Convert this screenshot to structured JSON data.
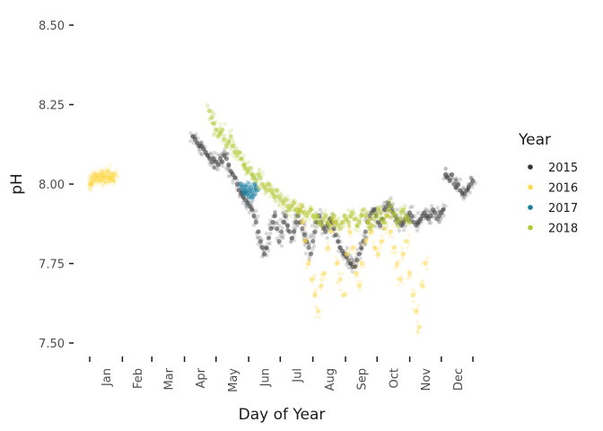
{
  "chart_data": {
    "type": "scatter",
    "xlabel": "Day of Year",
    "ylabel": "pH",
    "xlim": [
      1,
      365
    ],
    "ylim": [
      7.5,
      8.5
    ],
    "y_ticks": [
      7.5,
      7.75,
      8.0,
      8.25,
      8.5
    ],
    "y_tick_labels": [
      "7.50",
      "7.75",
      "8.00",
      "8.25",
      "8.50"
    ],
    "x_tick_labels": [
      "Jan",
      "Feb",
      "Mar",
      "Apr",
      "May",
      "Jun",
      "Jul",
      "Aug",
      "Sep",
      "Oct",
      "Nov",
      "Dec"
    ],
    "grid": false,
    "legend": {
      "title": "Year",
      "position": "right"
    },
    "series": [
      {
        "name": "2015",
        "color": "#333333",
        "x": [
          99,
          101,
          103,
          105,
          107,
          109,
          111,
          113,
          115,
          117,
          119,
          121,
          123,
          125,
          127,
          129,
          131,
          133,
          135,
          137,
          139,
          141,
          143,
          145,
          147,
          149,
          151,
          153,
          155,
          157,
          159,
          161,
          163,
          165,
          167,
          169,
          171,
          173,
          175,
          177,
          179,
          181,
          183,
          185,
          187,
          189,
          191,
          193,
          195,
          197,
          199,
          201,
          203,
          205,
          207,
          209,
          211,
          213,
          215,
          217,
          219,
          221,
          223,
          225,
          227,
          229,
          231,
          233,
          235,
          237,
          239,
          241,
          243,
          245,
          247,
          249,
          251,
          253,
          255,
          257,
          259,
          261,
          263,
          265,
          267,
          269,
          271,
          273,
          275,
          277,
          279,
          281,
          283,
          285,
          287,
          289,
          291,
          293,
          295,
          297,
          299,
          301,
          303,
          305,
          307,
          309,
          311,
          313,
          315,
          317,
          319,
          321,
          323,
          325,
          327,
          329,
          331,
          333,
          335,
          337,
          339,
          341,
          343,
          345,
          347,
          349,
          351,
          353,
          355,
          357,
          359,
          361,
          363,
          365
        ],
        "y": [
          8.15,
          8.14,
          8.13,
          8.12,
          8.12,
          8.11,
          8.1,
          8.09,
          8.08,
          8.07,
          8.08,
          8.07,
          8.06,
          8.08,
          8.07,
          8.09,
          8.08,
          8.06,
          8.04,
          8.03,
          8.02,
          8.0,
          7.98,
          7.97,
          7.96,
          7.95,
          7.94,
          7.93,
          7.92,
          7.9,
          7.88,
          7.85,
          7.82,
          7.8,
          7.78,
          7.8,
          7.83,
          7.86,
          7.88,
          7.9,
          7.86,
          7.82,
          7.85,
          7.88,
          7.9,
          7.87,
          7.85,
          7.83,
          7.85,
          7.88,
          7.9,
          7.88,
          7.86,
          7.84,
          7.82,
          7.8,
          7.78,
          7.82,
          7.85,
          7.88,
          7.9,
          7.88,
          7.86,
          7.85,
          7.87,
          7.89,
          7.88,
          7.86,
          7.84,
          7.82,
          7.8,
          7.79,
          7.78,
          7.77,
          7.76,
          7.75,
          7.74,
          7.74,
          7.76,
          7.78,
          7.8,
          7.82,
          7.85,
          7.88,
          7.9,
          7.91,
          7.92,
          7.9,
          7.88,
          7.87,
          7.89,
          7.92,
          7.93,
          7.94,
          7.93,
          7.91,
          7.9,
          7.89,
          7.88,
          7.87,
          7.88,
          7.89,
          7.9,
          7.91,
          7.9,
          7.88,
          7.87,
          7.88,
          7.89,
          7.9,
          7.91,
          7.9,
          7.89,
          7.9,
          7.92,
          7.91,
          7.89,
          7.9,
          7.91,
          7.92,
          8.03,
          8.02,
          8.01,
          8.03,
          8.0,
          7.99,
          8.0,
          7.98,
          7.97,
          7.97,
          7.98,
          7.99,
          8.0,
          8.01
        ]
      },
      {
        "name": "2016",
        "color": "#fdd94a",
        "x": [
          1,
          2,
          3,
          4,
          5,
          6,
          7,
          8,
          9,
          10,
          11,
          12,
          13,
          14,
          15,
          16,
          17,
          18,
          19,
          20,
          21,
          22,
          23,
          24,
          25,
          200,
          203,
          206,
          209,
          212,
          215,
          218,
          221,
          224,
          227,
          230,
          233,
          236,
          239,
          242,
          245,
          248,
          251,
          254,
          257,
          260,
          263,
          266,
          269,
          272,
          275,
          278,
          281,
          284,
          287,
          290,
          293,
          296,
          299,
          302,
          305,
          308,
          311,
          314,
          317,
          320
        ],
        "y": [
          8.0,
          8.01,
          8.0,
          8.02,
          8.01,
          8.03,
          8.02,
          8.01,
          8.02,
          8.03,
          8.01,
          8.02,
          8.03,
          8.02,
          8.01,
          8.02,
          8.03,
          8.04,
          8.02,
          8.01,
          8.02,
          8.03,
          8.02,
          8.01,
          8.03,
          7.92,
          7.88,
          7.82,
          7.75,
          7.7,
          7.65,
          7.6,
          7.68,
          7.72,
          7.8,
          7.85,
          7.88,
          7.75,
          7.7,
          7.65,
          7.78,
          7.85,
          7.8,
          7.72,
          7.68,
          7.75,
          7.82,
          7.88,
          7.85,
          7.8,
          7.78,
          7.82,
          7.86,
          7.9,
          7.85,
          7.8,
          7.75,
          7.7,
          7.78,
          7.82,
          7.72,
          7.65,
          7.6,
          7.55,
          7.68,
          7.75
        ]
      },
      {
        "name": "2017",
        "color": "#1a7e9e",
        "x": [
          145,
          146,
          147,
          148,
          149,
          150,
          151,
          152,
          153,
          154,
          155,
          156,
          157,
          158,
          159,
          160
        ],
        "y": [
          8.0,
          7.99,
          7.98,
          7.97,
          7.98,
          7.99,
          7.97,
          7.96,
          7.98,
          7.99,
          7.97,
          7.96,
          7.98,
          8.0,
          7.99,
          7.98
        ]
      },
      {
        "name": "2018",
        "color": "#b3c730",
        "x": [
          115,
          117,
          119,
          121,
          123,
          125,
          127,
          129,
          131,
          133,
          135,
          137,
          139,
          141,
          143,
          145,
          147,
          149,
          151,
          153,
          155,
          157,
          159,
          161,
          163,
          165,
          167,
          169,
          171,
          173,
          175,
          177,
          179,
          181,
          183,
          185,
          187,
          189,
          191,
          193,
          195,
          197,
          199,
          201,
          203,
          205,
          207,
          209,
          211,
          213,
          215,
          217,
          219,
          221,
          223,
          225,
          227,
          229,
          231,
          233,
          235,
          237,
          239,
          241,
          243,
          245,
          247,
          249,
          251,
          253,
          255,
          257,
          259,
          261,
          263,
          265,
          267,
          269,
          271,
          273,
          275,
          277,
          279,
          281,
          283,
          285,
          287,
          289,
          291,
          293,
          295,
          297,
          299,
          301,
          303,
          305
        ],
        "y": [
          8.23,
          8.21,
          8.19,
          8.17,
          8.15,
          8.16,
          8.17,
          8.14,
          8.12,
          8.13,
          8.15,
          8.12,
          8.1,
          8.09,
          8.1,
          8.08,
          8.06,
          8.05,
          8.04,
          8.05,
          8.03,
          8.02,
          8.01,
          8.03,
          8.02,
          8.0,
          7.99,
          7.98,
          8.0,
          7.98,
          7.97,
          7.96,
          7.98,
          7.96,
          7.95,
          7.94,
          7.95,
          7.93,
          7.92,
          7.93,
          7.94,
          7.92,
          7.91,
          7.92,
          7.93,
          7.91,
          7.9,
          7.91,
          7.92,
          7.9,
          7.89,
          7.9,
          7.88,
          7.87,
          7.89,
          7.9,
          7.88,
          7.87,
          7.89,
          7.9,
          7.88,
          7.87,
          7.86,
          7.88,
          7.9,
          7.89,
          7.88,
          7.9,
          7.91,
          7.89,
          7.87,
          7.88,
          7.9,
          7.92,
          7.9,
          7.88,
          7.86,
          7.87,
          7.89,
          7.9,
          7.92,
          7.91,
          7.89,
          7.88,
          7.9,
          7.92,
          7.93,
          7.91,
          7.9,
          7.88,
          7.89,
          7.91,
          7.92,
          7.9,
          7.89,
          7.88
        ]
      }
    ]
  }
}
